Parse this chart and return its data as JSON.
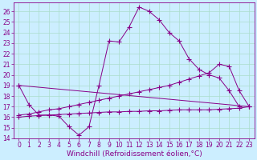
{
  "background_color": "#cceeff",
  "grid_color": "#aaddcc",
  "line_color": "#880088",
  "marker": "+",
  "marker_size": 4,
  "marker_lw": 0.8,
  "xlabel": "Windchill (Refroidissement éolien,°C)",
  "xlabel_fontsize": 6.5,
  "tick_fontsize": 5.5,
  "xlim": [
    -0.5,
    23.5
  ],
  "ylim": [
    14,
    26.8
  ],
  "yticks": [
    14,
    15,
    16,
    17,
    18,
    19,
    20,
    21,
    22,
    23,
    24,
    25,
    26
  ],
  "xticks": [
    0,
    1,
    2,
    3,
    4,
    5,
    6,
    7,
    8,
    9,
    10,
    11,
    12,
    13,
    14,
    15,
    16,
    17,
    18,
    19,
    20,
    21,
    22,
    23
  ],
  "series": [
    {
      "x": [
        0,
        1,
        2,
        3,
        4,
        5,
        6,
        7,
        8,
        9,
        10,
        11,
        12,
        13,
        14,
        15,
        16,
        17,
        18,
        19,
        20,
        21,
        22,
        23
      ],
      "y": [
        19.0,
        17.2,
        16.2,
        16.2,
        16.1,
        15.1,
        14.3,
        15.1,
        19.0,
        23.2,
        23.1,
        24.5,
        26.4,
        26.0,
        25.2,
        24.0,
        23.2,
        21.5,
        20.5,
        20.0,
        19.7,
        18.5,
        17.0,
        null
      ]
    },
    {
      "x": [
        0,
        23
      ],
      "y": [
        19.0,
        17.0
      ]
    },
    {
      "x": [
        0,
        1,
        2,
        3,
        4,
        5,
        6,
        7,
        8,
        9,
        10,
        11,
        12,
        13,
        14,
        15,
        16,
        17,
        18,
        19,
        20,
        21,
        22,
        23
      ],
      "y": [
        16.2,
        16.3,
        16.5,
        16.7,
        16.8,
        17.0,
        17.2,
        17.4,
        17.6,
        17.8,
        18.0,
        18.2,
        18.4,
        18.6,
        18.8,
        19.0,
        19.3,
        19.6,
        19.9,
        20.2,
        21.0,
        20.8,
        18.5,
        17.0
      ]
    },
    {
      "x": [
        0,
        1,
        2,
        3,
        4,
        5,
        6,
        7,
        8,
        9,
        10,
        11,
        12,
        13,
        14,
        15,
        16,
        17,
        18,
        19,
        20,
        21,
        22,
        23
      ],
      "y": [
        16.0,
        16.1,
        16.15,
        16.2,
        16.25,
        16.3,
        16.35,
        16.4,
        16.45,
        16.5,
        16.5,
        16.55,
        16.55,
        16.6,
        16.6,
        16.65,
        16.7,
        16.7,
        16.7,
        16.7,
        16.75,
        16.8,
        16.85,
        17.0
      ]
    }
  ]
}
